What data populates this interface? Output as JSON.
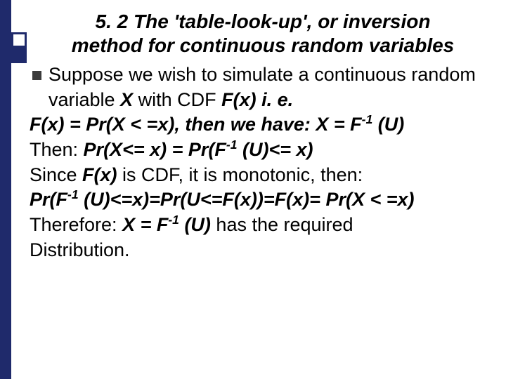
{
  "slide": {
    "title_line1": "5. 2  The 'table-look-up', or inversion",
    "title_line2": "method for continuous random variables",
    "bullet1_part1": "Suppose we wish to simulate a continuous random variable ",
    "bullet1_X": "X",
    "bullet1_with": " with CDF ",
    "bullet1_Fx": "F(x)",
    "bullet1_ie": " i. e.",
    "line2_Fx": "F(x) = Pr(X < =x),",
    "line2_then": " then we have: ",
    "line2_XeqF": "X = F",
    "line2_sup": "-1",
    "line2_U": " (U)",
    "line3_then": "Then: ",
    "line3_PrX": "Pr(X<= x) = Pr(F",
    "line3_sup": "-1",
    "line3_Ux": " (U)<= x)",
    "line4_since": "Since ",
    "line4_Fx": "F(x)",
    "line4_rest": " is CDF, it is monotonic, then:",
    "line5_a": "Pr(F",
    "line5_sup1": "-1",
    "line5_b": " (U)<=x)=Pr(U<=F(x))=F(x)= Pr(X < =x)",
    "line6_therefore": "Therefore: ",
    "line6_XeqF": "X = F",
    "line6_sup": "-1",
    "line6_U": " (U)",
    "line6_rest": " has the required",
    "line7": "Distribution."
  },
  "style": {
    "background_color": "#ffffff",
    "sidebar_color": "#1f2a6b",
    "text_color": "#000000",
    "title_fontsize": 28,
    "body_fontsize": 27,
    "bullet_color": "#3b3b3b",
    "font_family": "Arial"
  }
}
